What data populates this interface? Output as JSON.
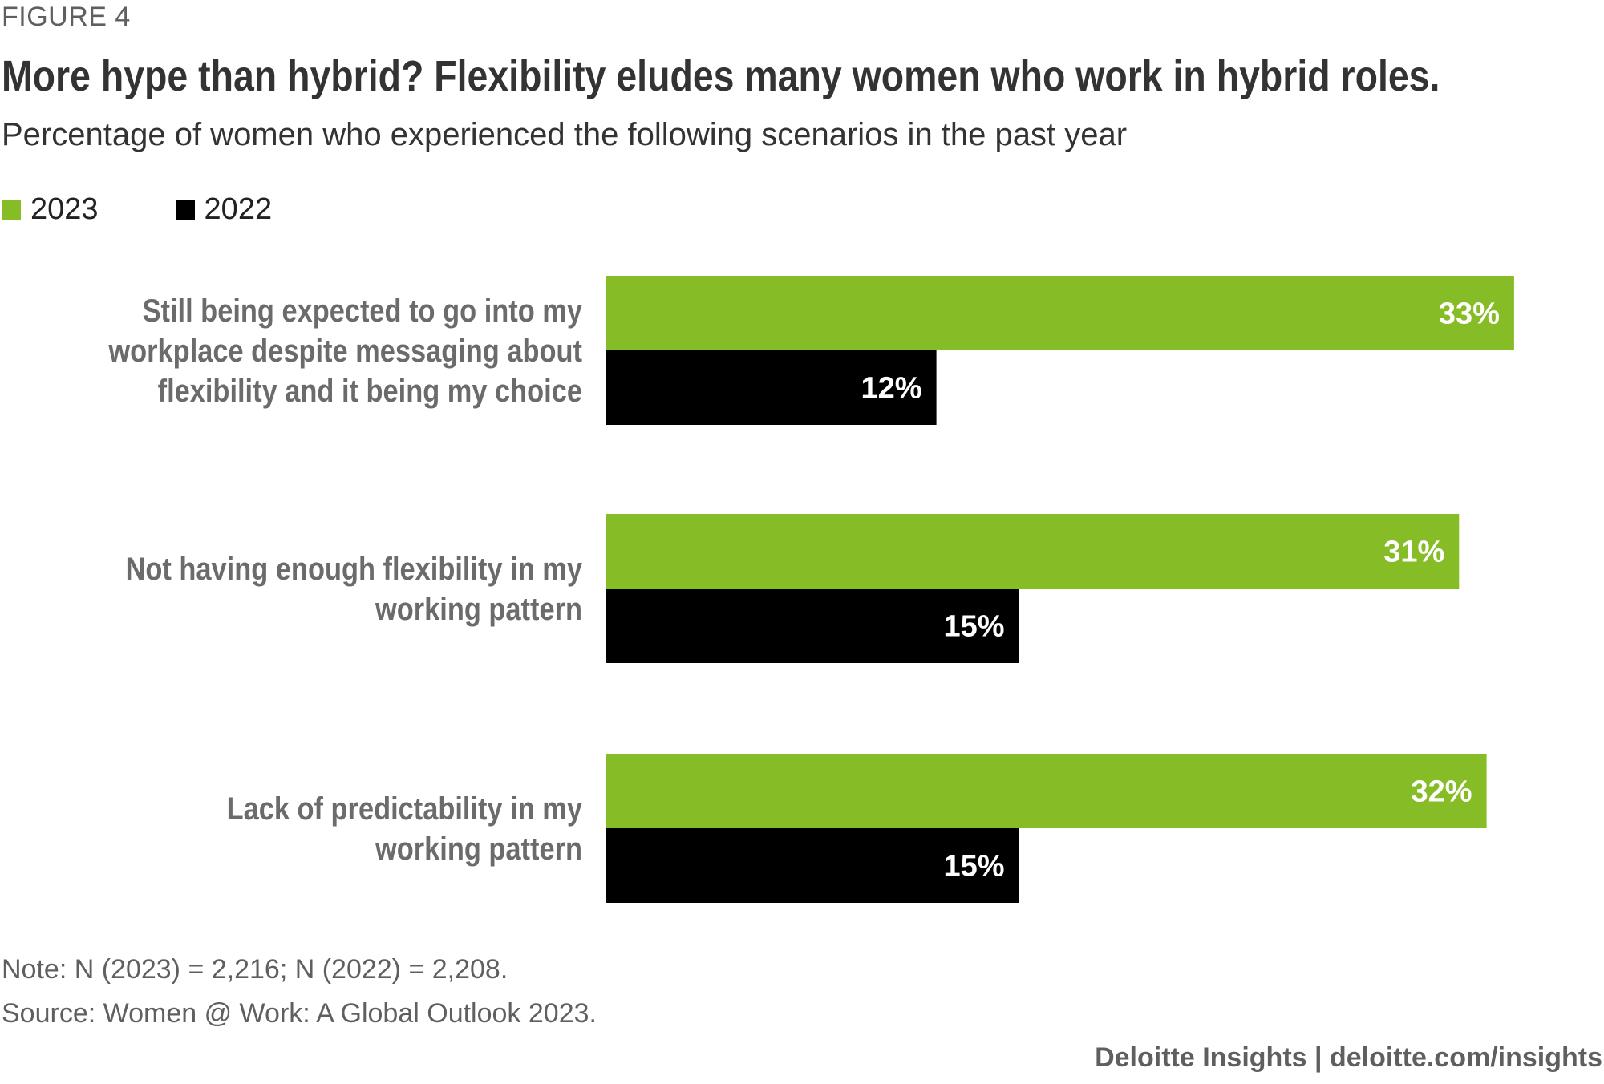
{
  "figure_label": "FIGURE 4",
  "title": "More hype than hybrid? Flexibility eludes many women who work in hybrid roles.",
  "subtitle": "Percentage of women who experienced the following scenarios in the past year",
  "colors": {
    "series_2023": "#86bc25",
    "series_2022": "#000000",
    "category_label": "#6b6b6b",
    "value_label": "#ffffff"
  },
  "chart_data": {
    "type": "bar",
    "orientation": "horizontal",
    "categories": [
      [
        "Still being expected to go into my",
        "workplace despite messaging about",
        "flexibility and it being my choice"
      ],
      [
        "Not having enough flexibility in my",
        "working pattern"
      ],
      [
        "Lack of predictability in my",
        "working pattern"
      ]
    ],
    "series": [
      {
        "name": "2023",
        "values": [
          33,
          31,
          32
        ],
        "labels": [
          "33%",
          "31%",
          "32%"
        ],
        "color": "#86bc25"
      },
      {
        "name": "2022",
        "values": [
          12,
          15,
          15
        ],
        "labels": [
          "12%",
          "15%",
          "15%"
        ],
        "color": "#000000"
      }
    ],
    "xlim": [
      0,
      33
    ],
    "legend_position": "top-left",
    "grid": false
  },
  "note": "Note: N (2023) = 2,216; N (2022) = 2,208.",
  "source": "Source: Women @ Work: A Global Outlook 2023.",
  "footer": "Deloitte Insights | deloitte.com/insights"
}
